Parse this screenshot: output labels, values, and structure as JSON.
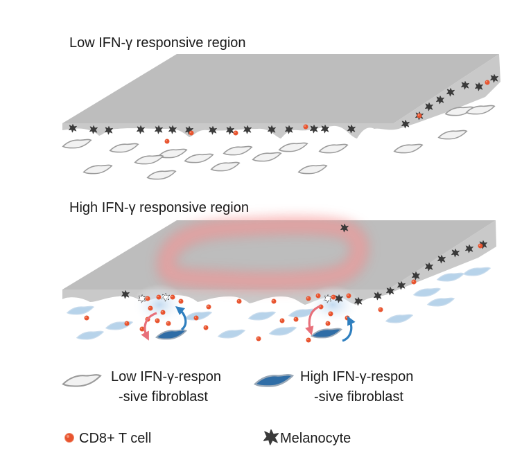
{
  "panels": {
    "low": {
      "title": "Low IFN-γ responsive region"
    },
    "high": {
      "title": "High IFN-γ responsive region"
    }
  },
  "legend": {
    "low_fibroblast": {
      "line1": "Low IFN-γ-respon",
      "line2": "-sive fibroblast"
    },
    "high_fibroblast": {
      "line1": "High IFN-γ-respon",
      "line2": "-sive fibroblast"
    },
    "t_cell": "CD8+ T cell",
    "melanocyte": "Melanocyte"
  },
  "colors": {
    "skin_top": "#bdbdbd",
    "skin_side": "#c9c9c9",
    "melanocyte": "#3a3a3a",
    "t_cell": "#e8542f",
    "low_fibroblast_fill": "#f2f2f2",
    "low_fibroblast_stroke": "#9a9a9a",
    "high_fibroblast_fill": "#b7d3ea",
    "high_fibroblast_dark": "#2f6da6",
    "inflammation_glow": "#f26b6b",
    "arrow_red": "#e8707a",
    "arrow_blue": "#2f7fbf"
  }
}
